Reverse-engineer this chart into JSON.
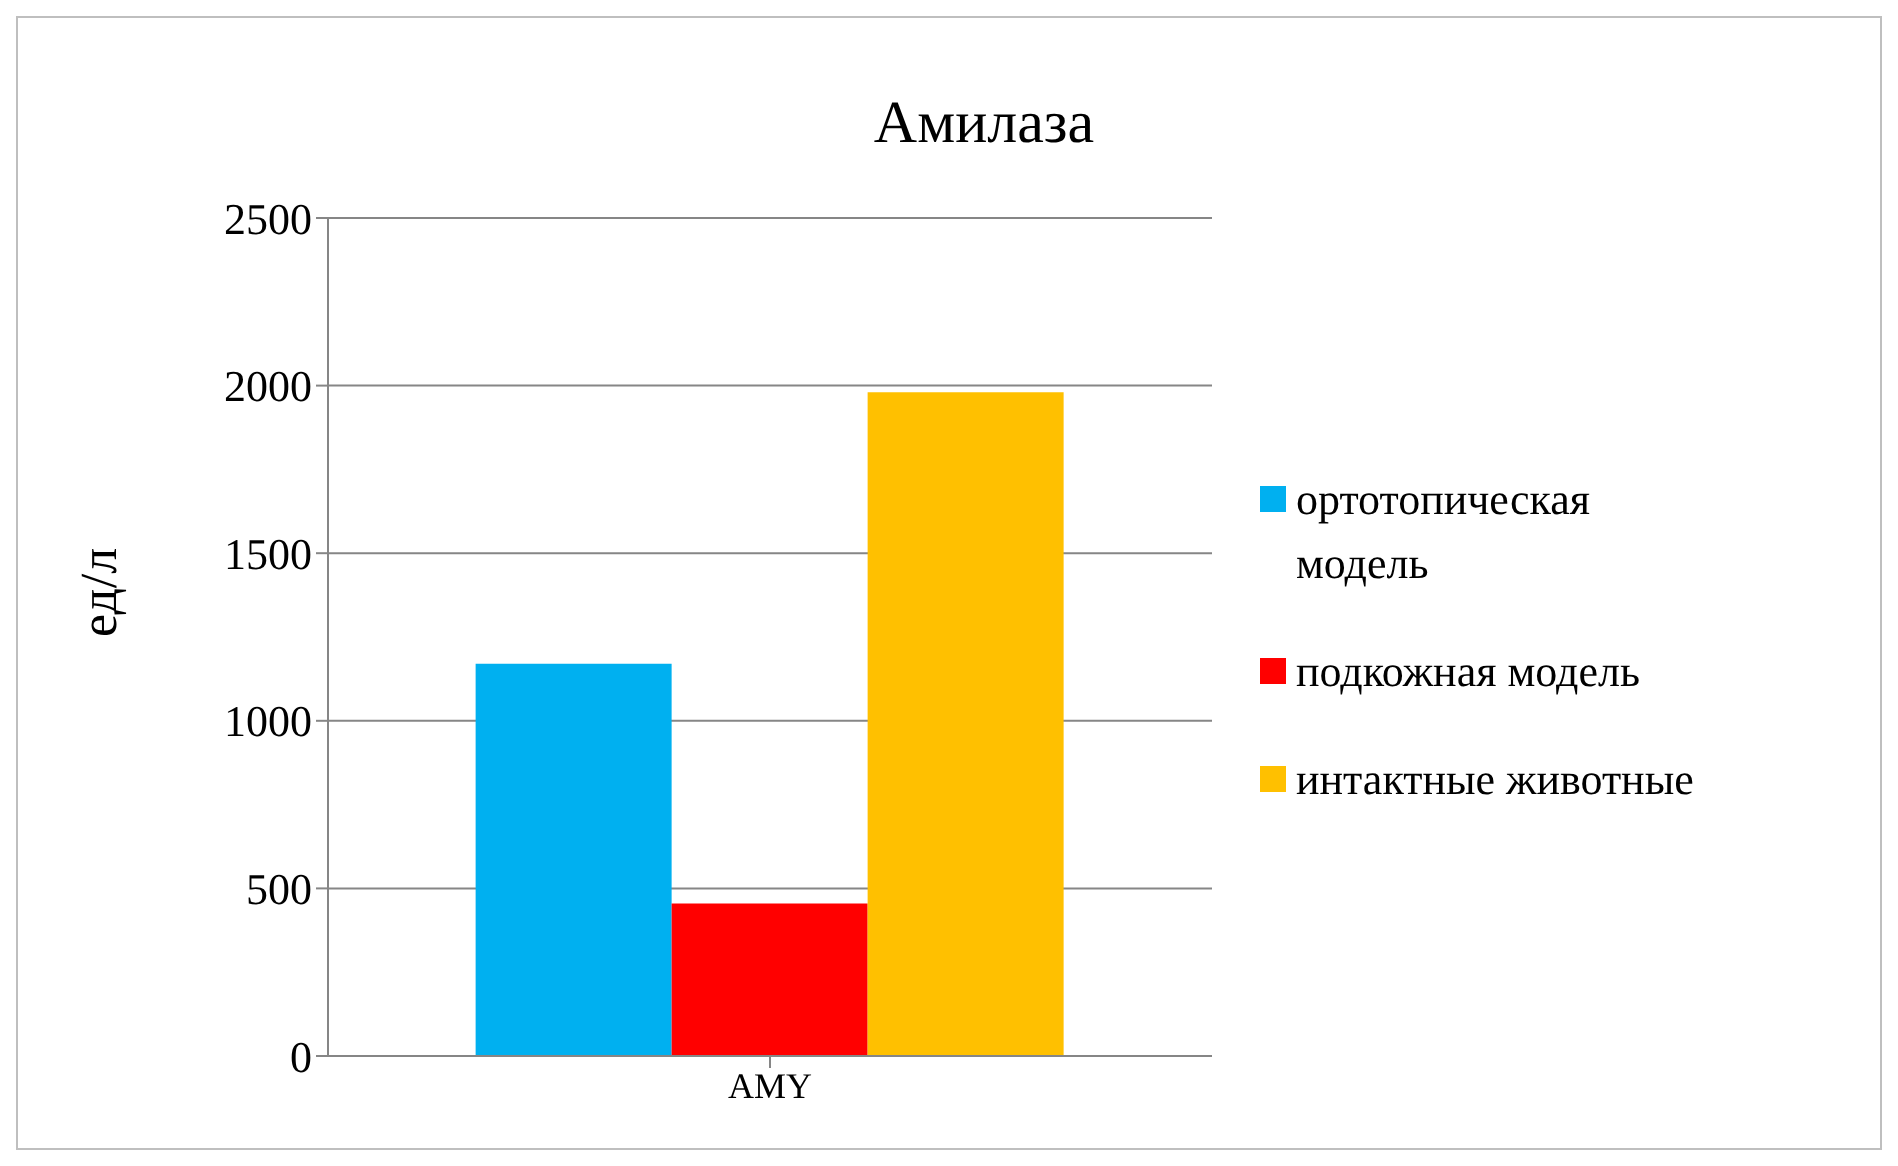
{
  "chart_data": {
    "type": "bar",
    "title": "Амилаза",
    "ylabel": "ед/л",
    "categories": [
      "AMY"
    ],
    "series": [
      {
        "name": "ортотопическая модель",
        "color": "#00b0f0",
        "values": [
          1170
        ]
      },
      {
        "name": "подкожная модель",
        "color": "#ff0000",
        "values": [
          455
        ]
      },
      {
        "name": "интактные животные",
        "color": "#ffc000",
        "values": [
          1980
        ]
      }
    ],
    "ylim": [
      0,
      2500
    ],
    "yticks": [
      0,
      500,
      1000,
      1500,
      2000,
      2500
    ],
    "grid": "y",
    "legend": "right"
  }
}
